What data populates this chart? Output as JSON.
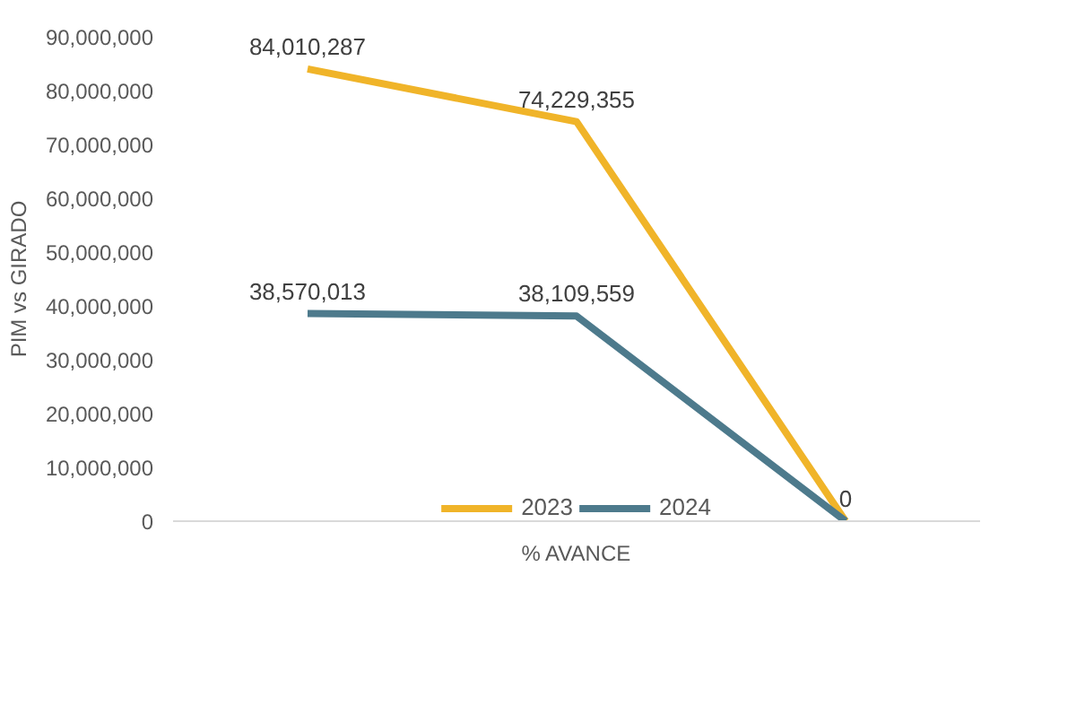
{
  "chart_data": {
    "type": "line",
    "xlabel": "% AVANCE",
    "ylabel": "PIM vs GIRADO",
    "categories": [
      null,
      null,
      null
    ],
    "series": [
      {
        "name": "2023",
        "color": "#f0b429",
        "values": [
          84010287,
          74229355,
          0
        ],
        "value_labels": [
          "84,010,287",
          "74,229,355",
          "0"
        ]
      },
      {
        "name": "2024",
        "color": "#4d7a8c",
        "values": [
          38570013,
          38109559,
          0
        ],
        "value_labels": [
          "38,570,013",
          "38,109,559",
          null
        ]
      }
    ],
    "ylim": [
      0,
      90000000
    ],
    "yticks": [
      {
        "value": 0,
        "label": "0"
      },
      {
        "value": 10000000,
        "label": "10,000,000"
      },
      {
        "value": 20000000,
        "label": "20,000,000"
      },
      {
        "value": 30000000,
        "label": "30,000,000"
      },
      {
        "value": 40000000,
        "label": "40,000,000"
      },
      {
        "value": 50000000,
        "label": "50,000,000"
      },
      {
        "value": 60000000,
        "label": "60,000,000"
      },
      {
        "value": 70000000,
        "label": "70,000,000"
      },
      {
        "value": 80000000,
        "label": "80,000,000"
      },
      {
        "value": 90000000,
        "label": "90,000,000"
      }
    ],
    "grid": false,
    "legend": "bottom",
    "marker": "none",
    "line_style": "solid"
  }
}
